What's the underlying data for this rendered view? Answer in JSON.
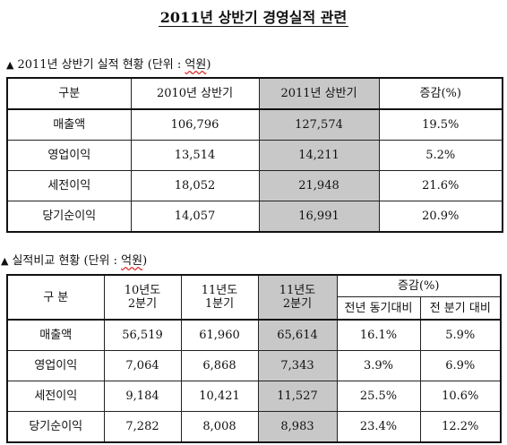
{
  "title": "2011년 상반기 경영실적 관련",
  "table1": {
    "caption_prefix": "2011년 상반기 실적 현황 (단위 :",
    "caption_unit": "억원",
    "caption_suffix": ")",
    "headers": [
      "구분",
      "2010년 상반기",
      "2011년 상반기",
      "증감(%)"
    ],
    "rows": [
      [
        "매출액",
        "106,796",
        "127,574",
        "19.5%"
      ],
      [
        "영업이익",
        "13,514",
        "14,211",
        "5.2%"
      ],
      [
        "세전이익",
        "18,052",
        "21,948",
        "21.6%"
      ],
      [
        "당기순이익",
        "14,057",
        "16,991",
        "20.9%"
      ]
    ],
    "highlight_color": "#c8c8c8"
  },
  "table2": {
    "caption_prefix": "실적비교 현황 (단위 :",
    "caption_unit": "억원",
    "caption_suffix": ")",
    "header_category": "구 분",
    "header_col1_line1": "10년도",
    "header_col1_line2": "2분기",
    "header_col2_line1": "11년도",
    "header_col2_line2": "1분기",
    "header_col3_line1": "11년도",
    "header_col3_line2": "2분기",
    "header_change": "증감(%)",
    "header_change_yoy": "전년 동기대비",
    "header_change_qoq": "전 분기 대비",
    "rows": [
      [
        "매출액",
        "56,519",
        "61,960",
        "65,614",
        "16.1%",
        "5.9%"
      ],
      [
        "영업이익",
        "7,064",
        "6,868",
        "7,343",
        "3.9%",
        "6.9%"
      ],
      [
        "세전이익",
        "9,184",
        "10,421",
        "11,527",
        "25.5%",
        "10.6%"
      ],
      [
        "당기순이익",
        "7,282",
        "8,008",
        "8,983",
        "23.4%",
        "12.2%"
      ]
    ]
  }
}
